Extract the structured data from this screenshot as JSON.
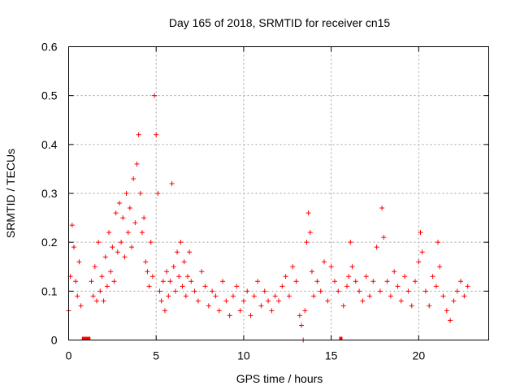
{
  "chart_data": {
    "type": "scatter",
    "title": "Day 165 of 2018, SRMTID for receiver cn15",
    "xlabel": "GPS time / hours",
    "ylabel": "SRMTID / TECUs",
    "xlim": [
      0,
      24
    ],
    "ylim": [
      0,
      0.6
    ],
    "xticks": [
      0,
      5,
      10,
      15,
      20
    ],
    "xtick_labels": [
      "0",
      "5",
      "10",
      "15",
      "20"
    ],
    "yticks": [
      0,
      0.1,
      0.2,
      0.3,
      0.4,
      0.5,
      0.6
    ],
    "ytick_labels": [
      "0",
      "0.1",
      "0.2",
      "0.3",
      "0.4",
      "0.5",
      "0.6"
    ],
    "grid": true,
    "marker": "+",
    "color": "#ff0000",
    "data_gap_markers_hours": [
      0.85,
      0.95,
      1.05,
      1.15,
      15.55
    ],
    "series": [
      {
        "name": "SRMTID",
        "x": [
          0.0,
          0.1,
          0.2,
          0.3,
          0.4,
          0.5,
          0.6,
          0.7,
          1.3,
          1.4,
          1.5,
          1.6,
          1.7,
          1.8,
          1.9,
          2.0,
          2.1,
          2.2,
          2.3,
          2.4,
          2.5,
          2.6,
          2.7,
          2.8,
          2.9,
          3.0,
          3.1,
          3.2,
          3.3,
          3.4,
          3.5,
          3.6,
          3.7,
          3.8,
          3.9,
          4.0,
          4.1,
          4.2,
          4.3,
          4.4,
          4.5,
          4.6,
          4.7,
          4.8,
          4.9,
          5.0,
          5.1,
          5.2,
          5.3,
          5.4,
          5.5,
          5.6,
          5.7,
          5.8,
          5.9,
          6.0,
          6.1,
          6.2,
          6.3,
          6.4,
          6.5,
          6.6,
          6.7,
          6.8,
          6.9,
          7.0,
          7.2,
          7.4,
          7.6,
          7.8,
          8.0,
          8.2,
          8.4,
          8.6,
          8.8,
          9.0,
          9.2,
          9.4,
          9.6,
          9.8,
          10.0,
          10.2,
          10.4,
          10.6,
          10.8,
          11.0,
          11.2,
          11.4,
          11.6,
          11.8,
          12.0,
          12.2,
          12.4,
          12.6,
          12.8,
          13.0,
          13.2,
          13.3,
          13.4,
          13.5,
          13.6,
          13.7,
          13.8,
          13.9,
          14.0,
          14.2,
          14.4,
          14.6,
          14.8,
          15.0,
          15.2,
          15.4,
          15.7,
          15.9,
          16.0,
          16.1,
          16.2,
          16.4,
          16.6,
          16.8,
          17.0,
          17.2,
          17.4,
          17.6,
          17.8,
          17.9,
          18.0,
          18.2,
          18.4,
          18.6,
          18.8,
          19.0,
          19.2,
          19.4,
          19.6,
          19.8,
          20.0,
          20.1,
          20.2,
          20.4,
          20.6,
          20.8,
          21.0,
          21.1,
          21.2,
          21.4,
          21.6,
          21.8,
          22.0,
          22.2,
          22.4,
          22.6,
          22.8
        ],
        "y": [
          0.06,
          0.13,
          0.235,
          0.19,
          0.12,
          0.09,
          0.16,
          0.07,
          0.12,
          0.09,
          0.15,
          0.08,
          0.2,
          0.1,
          0.13,
          0.08,
          0.17,
          0.11,
          0.22,
          0.14,
          0.19,
          0.12,
          0.26,
          0.18,
          0.28,
          0.2,
          0.25,
          0.17,
          0.3,
          0.22,
          0.27,
          0.19,
          0.33,
          0.24,
          0.36,
          0.42,
          0.3,
          0.22,
          0.25,
          0.16,
          0.14,
          0.11,
          0.2,
          0.13,
          0.5,
          0.42,
          0.3,
          0.1,
          0.08,
          0.12,
          0.06,
          0.14,
          0.09,
          0.12,
          0.32,
          0.15,
          0.1,
          0.18,
          0.13,
          0.2,
          0.11,
          0.16,
          0.09,
          0.13,
          0.18,
          0.12,
          0.1,
          0.08,
          0.14,
          0.11,
          0.07,
          0.1,
          0.09,
          0.06,
          0.12,
          0.08,
          0.05,
          0.09,
          0.11,
          0.06,
          0.08,
          0.1,
          0.05,
          0.09,
          0.12,
          0.07,
          0.1,
          0.08,
          0.06,
          0.09,
          0.08,
          0.11,
          0.13,
          0.09,
          0.15,
          0.12,
          0.05,
          0.03,
          0.0,
          0.06,
          0.2,
          0.26,
          0.22,
          0.14,
          0.09,
          0.12,
          0.1,
          0.16,
          0.08,
          0.15,
          0.12,
          0.1,
          0.07,
          0.11,
          0.13,
          0.2,
          0.15,
          0.12,
          0.1,
          0.08,
          0.13,
          0.09,
          0.12,
          0.19,
          0.1,
          0.27,
          0.21,
          0.12,
          0.09,
          0.14,
          0.11,
          0.08,
          0.13,
          0.1,
          0.07,
          0.12,
          0.16,
          0.22,
          0.18,
          0.1,
          0.07,
          0.13,
          0.11,
          0.2,
          0.15,
          0.09,
          0.06,
          0.04,
          0.08,
          0.1,
          0.12,
          0.09,
          0.11
        ]
      }
    ]
  }
}
